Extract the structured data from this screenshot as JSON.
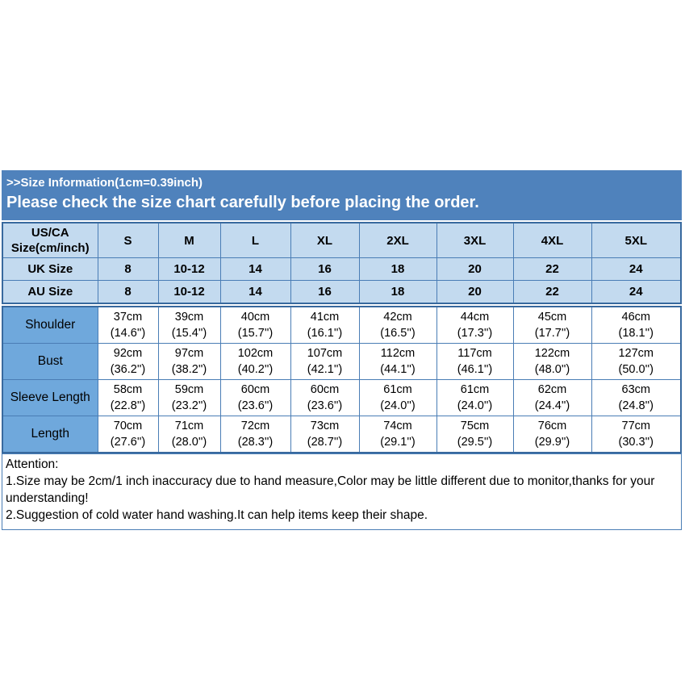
{
  "header": {
    "line1": ">>Size Information(1cm=0.39inch)",
    "line2": "Please check the size chart carefully before placing the order."
  },
  "size_table": {
    "corner": [
      "US/CA",
      "Size(cm/inch)"
    ],
    "columns": [
      "S",
      "M",
      "L",
      "XL",
      "2XL",
      "3XL",
      "4XL",
      "5XL"
    ],
    "rows": [
      {
        "label": "UK Size",
        "values": [
          "8",
          "10-12",
          "14",
          "16",
          "18",
          "20",
          "22",
          "24"
        ]
      },
      {
        "label": "AU Size",
        "values": [
          "8",
          "10-12",
          "14",
          "16",
          "18",
          "20",
          "22",
          "24"
        ]
      }
    ]
  },
  "measure_table": {
    "rows": [
      {
        "label": "Shoulder",
        "cm": [
          "37cm",
          "39cm",
          "40cm",
          "41cm",
          "42cm",
          "44cm",
          "45cm",
          "46cm"
        ],
        "inch": [
          "(14.6'')",
          "(15.4'')",
          "(15.7'')",
          "(16.1'')",
          "(16.5'')",
          "(17.3'')",
          "(17.7'')",
          "(18.1'')"
        ]
      },
      {
        "label": "Bust",
        "cm": [
          "92cm",
          "97cm",
          "102cm",
          "107cm",
          "112cm",
          "117cm",
          "122cm",
          "127cm"
        ],
        "inch": [
          "(36.2'')",
          "(38.2'')",
          "(40.2'')",
          "(42.1'')",
          "(44.1'')",
          "(46.1'')",
          "(48.0'')",
          "(50.0'')"
        ]
      },
      {
        "label": "Sleeve Length",
        "cm": [
          "58cm",
          "59cm",
          "60cm",
          "60cm",
          "61cm",
          "61cm",
          "62cm",
          "63cm"
        ],
        "inch": [
          "(22.8'')",
          "(23.2'')",
          "(23.6'')",
          "(23.6'')",
          "(24.0'')",
          "(24.0'')",
          "(24.4'')",
          "(24.8'')"
        ]
      },
      {
        "label": "Length",
        "cm": [
          "70cm",
          "71cm",
          "72cm",
          "73cm",
          "74cm",
          "75cm",
          "76cm",
          "77cm"
        ],
        "inch": [
          "(27.6'')",
          "(28.0'')",
          "(28.3'')",
          "(28.7'')",
          "(29.1'')",
          "(29.5'')",
          "(29.9'')",
          "(30.3'')"
        ]
      }
    ]
  },
  "attention": {
    "title": "Attention:",
    "line1": "1.Size may be 2cm/1 inch inaccuracy due to hand measure,Color may be little different due to monitor,thanks for your understanding!",
    "line2": "2.Suggestion of cold water hand washing.It can help items keep their shape."
  },
  "colors": {
    "title_bar_bg": "#4F82BC",
    "size_table_bg": "#C3DAEF",
    "label_column_bg": "#6FA8DC",
    "grid_border": "#4A7DB5",
    "outer_border": "#38699E",
    "title_text": "#ffffff",
    "body_text": "#000000"
  }
}
